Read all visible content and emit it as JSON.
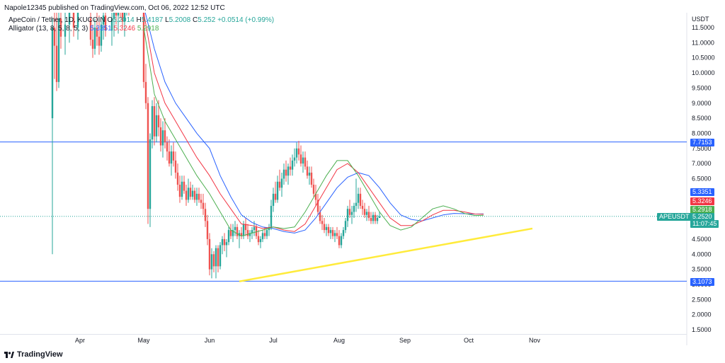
{
  "header": {
    "published": "Napole12345 published on TradingView.com, Oct 06, 2022 12:52 UTC"
  },
  "symbol": {
    "name": "ApeCoin / Tether, 1D, KUCOIN",
    "o_label": "O",
    "o": "5.2014",
    "h_label": "H",
    "h": "5.4187",
    "l_label": "L",
    "l": "5.2008",
    "c_label": "C",
    "c": "5.252",
    "change": "+0.0514 (+0.99%)"
  },
  "indicator": {
    "name": "Alligator (13, 8, 5, 8, 5, 3)",
    "jaw": "5.3351",
    "teeth": "5.3246",
    "lips": "5.2918"
  },
  "axis": {
    "currency": "USDT"
  },
  "price_tags": {
    "upper_line": "7.7153",
    "jaw": "5.3351",
    "teeth": "5.3246",
    "lips": "5.2918",
    "last": "5.2520",
    "countdown": "11:07:45",
    "lower_line": "3.1073",
    "symbol": "APEUSDT"
  },
  "colors": {
    "up": "#26a69a",
    "down": "#ef5350",
    "jaw": "#2962ff",
    "teeth": "#f23645",
    "lips": "#4caf50",
    "trendline": "#ffeb3b",
    "hline": "#2962ff"
  },
  "footer": {
    "brand": "TradingView"
  },
  "chart_data": {
    "type": "line",
    "ylabel": "USDT",
    "ylim": [
      1.5,
      11.75
    ],
    "yticks": [
      "11.5000",
      "11.0000",
      "10.5000",
      "10.0000",
      "9.5000",
      "9.0000",
      "8.5000",
      "8.0000",
      "7.5000",
      "7.0000",
      "6.5000",
      "6.0000",
      "5.5000",
      "5.0000",
      "4.5000",
      "4.0000",
      "3.5000",
      "3.0000",
      "2.5000",
      "2.0000",
      "1.5000"
    ],
    "ytick_values": [
      11.5,
      11.0,
      10.5,
      10.0,
      9.5,
      9.0,
      8.5,
      8.0,
      7.5,
      7.0,
      6.5,
      6.0,
      5.5,
      5.0,
      4.5,
      4.0,
      3.5,
      3.0,
      2.5,
      2.0,
      1.5
    ],
    "xticks": [
      "Apr",
      "May",
      "Jun",
      "Jul",
      "Aug",
      "Sep",
      "Oct",
      "Nov"
    ],
    "xtick_days": [
      31,
      61,
      92,
      122,
      153,
      184,
      214,
      245
    ],
    "horizontal_lines": [
      7.7153,
      3.1073
    ],
    "last_price": 5.252,
    "trendline": {
      "from": [
        "2022-06-15",
        3.1
      ],
      "to": [
        "2022-10-31",
        4.85
      ]
    },
    "jaw_points": [
      [
        61,
        12.2
      ],
      [
        66,
        10.8
      ],
      [
        71,
        9.7
      ],
      [
        76,
        9.0
      ],
      [
        81,
        8.5
      ],
      [
        86,
        8.0
      ],
      [
        92,
        7.5
      ],
      [
        97,
        6.6
      ],
      [
        102,
        5.9
      ],
      [
        107,
        5.3
      ],
      [
        112,
        5.05
      ],
      [
        117,
        4.9
      ],
      [
        122,
        4.85
      ],
      [
        127,
        4.75
      ],
      [
        132,
        4.7
      ],
      [
        137,
        4.8
      ],
      [
        142,
        5.2
      ],
      [
        147,
        5.7
      ],
      [
        152,
        6.2
      ],
      [
        157,
        6.55
      ],
      [
        162,
        6.7
      ],
      [
        167,
        6.6
      ],
      [
        172,
        6.2
      ],
      [
        177,
        5.7
      ],
      [
        182,
        5.3
      ],
      [
        187,
        5.15
      ],
      [
        192,
        5.1
      ],
      [
        197,
        5.2
      ],
      [
        202,
        5.3
      ],
      [
        207,
        5.35
      ],
      [
        212,
        5.34
      ],
      [
        217,
        5.33
      ],
      [
        221,
        5.335
      ]
    ],
    "teeth_points": [
      [
        61,
        12.0
      ],
      [
        66,
        10.0
      ],
      [
        71,
        9.0
      ],
      [
        76,
        8.4
      ],
      [
        81,
        7.8
      ],
      [
        86,
        7.2
      ],
      [
        92,
        6.6
      ],
      [
        97,
        6.0
      ],
      [
        102,
        5.5
      ],
      [
        107,
        5.0
      ],
      [
        112,
        4.95
      ],
      [
        117,
        4.85
      ],
      [
        122,
        4.9
      ],
      [
        127,
        4.8
      ],
      [
        132,
        4.75
      ],
      [
        137,
        5.0
      ],
      [
        142,
        5.6
      ],
      [
        147,
        6.2
      ],
      [
        152,
        6.8
      ],
      [
        157,
        7.0
      ],
      [
        162,
        6.7
      ],
      [
        167,
        6.2
      ],
      [
        172,
        5.7
      ],
      [
        177,
        5.2
      ],
      [
        182,
        4.95
      ],
      [
        187,
        4.95
      ],
      [
        192,
        5.1
      ],
      [
        197,
        5.3
      ],
      [
        202,
        5.45
      ],
      [
        207,
        5.45
      ],
      [
        212,
        5.4
      ],
      [
        217,
        5.33
      ],
      [
        221,
        5.325
      ]
    ],
    "lips_points": [
      [
        61,
        11.5
      ],
      [
        66,
        9.3
      ],
      [
        71,
        8.4
      ],
      [
        76,
        7.8
      ],
      [
        81,
        7.2
      ],
      [
        86,
        6.6
      ],
      [
        92,
        6.0
      ],
      [
        97,
        5.4
      ],
      [
        102,
        4.8
      ],
      [
        107,
        4.6
      ],
      [
        112,
        4.7
      ],
      [
        117,
        4.8
      ],
      [
        122,
        4.9
      ],
      [
        127,
        4.85
      ],
      [
        132,
        4.9
      ],
      [
        137,
        5.4
      ],
      [
        142,
        6.0
      ],
      [
        147,
        6.6
      ],
      [
        152,
        7.1
      ],
      [
        157,
        7.1
      ],
      [
        162,
        6.6
      ],
      [
        167,
        6.0
      ],
      [
        172,
        5.4
      ],
      [
        177,
        4.95
      ],
      [
        182,
        4.8
      ],
      [
        187,
        4.9
      ],
      [
        192,
        5.2
      ],
      [
        197,
        5.5
      ],
      [
        202,
        5.6
      ],
      [
        207,
        5.5
      ],
      [
        212,
        5.35
      ],
      [
        217,
        5.28
      ],
      [
        221,
        5.29
      ]
    ],
    "candles": [
      [
        18,
        8.5,
        11.8,
        4.0,
        11.5
      ],
      [
        19,
        11.5,
        12.5,
        9.8,
        10.9
      ],
      [
        20,
        10.9,
        12.6,
        9.4,
        9.7
      ],
      [
        21,
        9.7,
        12.1,
        9.5,
        11.8
      ],
      [
        22,
        11.8,
        12.6,
        10.8,
        11.2
      ],
      [
        24,
        11.2,
        12.2,
        10.6,
        11.6
      ],
      [
        26,
        11.6,
        12.5,
        11.0,
        12.0
      ],
      [
        28,
        12.0,
        12.6,
        11.2,
        11.5
      ],
      [
        30,
        11.5,
        12.4,
        11.1,
        12.2
      ],
      [
        36,
        11.8,
        12.5,
        10.9,
        11.1
      ],
      [
        37,
        11.1,
        11.6,
        10.5,
        10.8
      ],
      [
        38,
        10.8,
        11.8,
        10.6,
        11.5
      ],
      [
        39,
        11.5,
        12.3,
        10.9,
        11.2
      ],
      [
        40,
        11.2,
        11.9,
        10.6,
        10.9
      ],
      [
        41,
        10.9,
        11.7,
        10.7,
        11.6
      ],
      [
        42,
        11.6,
        12.4,
        11.1,
        11.9
      ],
      [
        43,
        11.9,
        12.6,
        11.2,
        11.4
      ],
      [
        46,
        11.4,
        12.4,
        10.9,
        11.8
      ],
      [
        47,
        11.8,
        12.5,
        11.2,
        12.1
      ],
      [
        48,
        12.1,
        12.6,
        11.6,
        11.9
      ],
      [
        49,
        11.9,
        12.6,
        11.3,
        12.3
      ],
      [
        50,
        12.3,
        12.6,
        11.8,
        12.0
      ],
      [
        51,
        12.0,
        12.7,
        11.5,
        11.7
      ],
      [
        52,
        11.7,
        12.3,
        11.2,
        12.2
      ],
      [
        53,
        12.2,
        12.7,
        11.9,
        12.4
      ],
      [
        54,
        12.4,
        12.8,
        11.9,
        12.1
      ],
      [
        61,
        12.0,
        12.2,
        9.5,
        9.7
      ],
      [
        62,
        9.7,
        10.3,
        8.8,
        9.0
      ],
      [
        63,
        9.0,
        9.2,
        5.0,
        5.5
      ],
      [
        64,
        5.5,
        8.0,
        4.9,
        7.8
      ],
      [
        65,
        7.8,
        9.1,
        7.5,
        8.9
      ],
      [
        66,
        8.9,
        9.2,
        7.6,
        7.9
      ],
      [
        67,
        7.9,
        9.0,
        7.7,
        8.6
      ],
      [
        68,
        8.6,
        9.1,
        7.9,
        8.2
      ],
      [
        69,
        8.2,
        8.5,
        7.4,
        7.6
      ],
      [
        70,
        7.6,
        8.4,
        7.2,
        8.1
      ],
      [
        71,
        8.1,
        8.5,
        7.5,
        7.7
      ],
      [
        72,
        7.7,
        7.9,
        7.1,
        7.4
      ],
      [
        73,
        7.4,
        7.8,
        6.9,
        7.0
      ],
      [
        74,
        7.0,
        7.6,
        6.6,
        7.4
      ],
      [
        75,
        7.4,
        7.7,
        6.9,
        7.1
      ],
      [
        76,
        7.1,
        7.4,
        6.5,
        6.7
      ],
      [
        77,
        6.7,
        7.0,
        6.1,
        6.3
      ],
      [
        78,
        6.3,
        6.6,
        5.7,
        5.9
      ],
      [
        79,
        5.9,
        6.6,
        5.8,
        6.4
      ],
      [
        80,
        6.4,
        6.6,
        6.0,
        6.1
      ],
      [
        81,
        6.1,
        6.3,
        5.6,
        5.8
      ],
      [
        82,
        5.8,
        6.5,
        5.7,
        6.2
      ],
      [
        83,
        6.2,
        6.4,
        5.8,
        5.9
      ],
      [
        84,
        5.9,
        6.3,
        5.8,
        6.1
      ],
      [
        85,
        6.1,
        6.2,
        5.7,
        5.8
      ],
      [
        86,
        5.8,
        6.2,
        5.6,
        6.0
      ],
      [
        87,
        6.0,
        6.2,
        5.7,
        5.8
      ],
      [
        88,
        5.8,
        6.0,
        5.5,
        5.7
      ],
      [
        89,
        5.7,
        6.0,
        5.3,
        5.5
      ],
      [
        90,
        5.5,
        5.7,
        4.9,
        5.1
      ],
      [
        91,
        5.1,
        5.3,
        4.3,
        4.5
      ],
      [
        92,
        4.5,
        4.7,
        3.3,
        3.5
      ],
      [
        93,
        3.5,
        4.2,
        3.2,
        4.0
      ],
      [
        94,
        4.0,
        4.1,
        3.4,
        3.6
      ],
      [
        95,
        3.6,
        4.3,
        3.2,
        4.2
      ],
      [
        96,
        4.2,
        4.3,
        3.4,
        3.6
      ],
      [
        97,
        3.6,
        4.4,
        3.5,
        4.3
      ],
      [
        98,
        4.3,
        4.6,
        4.0,
        4.5
      ],
      [
        99,
        4.5,
        4.7,
        4.1,
        4.3
      ],
      [
        100,
        4.3,
        4.5,
        3.9,
        4.4
      ],
      [
        101,
        4.4,
        4.9,
        4.3,
        4.8
      ],
      [
        102,
        4.8,
        5.0,
        4.5,
        4.6
      ],
      [
        103,
        4.6,
        5.0,
        4.4,
        4.8
      ],
      [
        104,
        4.8,
        5.1,
        4.6,
        4.9
      ],
      [
        105,
        4.9,
        5.0,
        4.5,
        4.6
      ],
      [
        106,
        4.6,
        4.8,
        4.2,
        4.7
      ],
      [
        107,
        4.7,
        4.9,
        4.5,
        4.6
      ],
      [
        108,
        4.6,
        5.1,
        4.5,
        5.0
      ],
      [
        109,
        5.0,
        5.2,
        4.6,
        4.8
      ],
      [
        110,
        4.8,
        5.0,
        4.5,
        4.6
      ],
      [
        111,
        4.6,
        4.8,
        4.4,
        4.7
      ],
      [
        112,
        4.7,
        4.9,
        4.5,
        4.8
      ],
      [
        113,
        4.8,
        5.1,
        4.6,
        4.9
      ],
      [
        114,
        4.9,
        5.0,
        4.5,
        4.6
      ],
      [
        115,
        4.6,
        4.8,
        4.3,
        4.4
      ],
      [
        116,
        4.4,
        4.6,
        4.2,
        4.5
      ],
      [
        117,
        4.5,
        4.8,
        4.4,
        4.7
      ],
      [
        118,
        4.7,
        4.9,
        4.5,
        4.6
      ],
      [
        119,
        4.6,
        4.9,
        4.5,
        4.8
      ],
      [
        120,
        4.8,
        5.0,
        4.6,
        4.9
      ],
      [
        121,
        4.9,
        5.8,
        4.8,
        5.6
      ],
      [
        122,
        5.6,
        6.2,
        5.4,
        6.0
      ],
      [
        123,
        6.0,
        6.4,
        5.7,
        5.8
      ],
      [
        124,
        5.8,
        6.6,
        5.7,
        6.4
      ],
      [
        125,
        6.4,
        6.8,
        6.1,
        6.2
      ],
      [
        126,
        6.2,
        6.7,
        5.9,
        6.5
      ],
      [
        127,
        6.5,
        7.0,
        6.3,
        6.8
      ],
      [
        128,
        6.8,
        7.1,
        6.4,
        6.6
      ],
      [
        129,
        6.6,
        7.0,
        6.3,
        6.9
      ],
      [
        130,
        6.9,
        7.2,
        6.6,
        6.8
      ],
      [
        131,
        6.8,
        7.3,
        6.6,
        7.1
      ],
      [
        132,
        7.1,
        7.5,
        6.9,
        7.2
      ],
      [
        133,
        7.2,
        7.7,
        7.0,
        7.5
      ],
      [
        134,
        7.5,
        7.75,
        7.1,
        7.3
      ],
      [
        135,
        7.3,
        7.6,
        6.9,
        7.0
      ],
      [
        136,
        7.0,
        7.4,
        6.7,
        7.2
      ],
      [
        137,
        7.2,
        7.4,
        6.8,
        6.9
      ],
      [
        138,
        6.9,
        7.1,
        6.5,
        6.6
      ],
      [
        139,
        6.6,
        6.9,
        6.3,
        6.7
      ],
      [
        140,
        6.7,
        6.9,
        6.2,
        6.3
      ],
      [
        141,
        6.3,
        6.5,
        5.9,
        6.0
      ],
      [
        142,
        6.0,
        6.3,
        5.6,
        5.8
      ],
      [
        143,
        5.8,
        6.0,
        5.3,
        5.4
      ],
      [
        144,
        5.4,
        5.6,
        5.0,
        5.1
      ],
      [
        145,
        5.1,
        5.3,
        4.8,
        5.0
      ],
      [
        146,
        5.0,
        5.2,
        4.7,
        4.8
      ],
      [
        147,
        4.8,
        5.0,
        4.6,
        4.9
      ],
      [
        148,
        4.9,
        5.0,
        4.6,
        4.7
      ],
      [
        149,
        4.7,
        4.9,
        4.5,
        4.8
      ],
      [
        150,
        4.8,
        4.9,
        4.5,
        4.6
      ],
      [
        151,
        4.6,
        4.8,
        4.4,
        4.7
      ],
      [
        152,
        4.7,
        4.9,
        4.5,
        4.6
      ],
      [
        153,
        4.6,
        4.8,
        4.2,
        4.3
      ],
      [
        154,
        4.3,
        4.7,
        4.2,
        4.6
      ],
      [
        155,
        4.6,
        4.9,
        4.5,
        4.8
      ],
      [
        156,
        4.8,
        5.2,
        4.7,
        5.1
      ],
      [
        157,
        5.1,
        5.6,
        4.9,
        5.5
      ],
      [
        158,
        5.5,
        5.8,
        5.2,
        5.3
      ],
      [
        159,
        5.3,
        5.6,
        5.0,
        5.4
      ],
      [
        160,
        5.4,
        5.7,
        5.2,
        5.6
      ],
      [
        161,
        5.6,
        6.5,
        5.4,
        5.7
      ],
      [
        162,
        5.7,
        6.2,
        5.5,
        6.0
      ],
      [
        163,
        6.0,
        6.2,
        5.5,
        5.6
      ],
      [
        164,
        5.6,
        5.8,
        5.3,
        5.5
      ],
      [
        165,
        5.5,
        5.7,
        5.2,
        5.3
      ],
      [
        166,
        5.3,
        5.5,
        5.1,
        5.4
      ],
      [
        167,
        5.4,
        5.6,
        5.1,
        5.2
      ],
      [
        168,
        5.2,
        5.4,
        5.0,
        5.1
      ],
      [
        169,
        5.1,
        5.4,
        5.0,
        5.3
      ],
      [
        170,
        5.3,
        5.4,
        5.0,
        5.1
      ],
      [
        171,
        5.1,
        5.3,
        5.0,
        5.2014
      ],
      [
        172,
        5.2014,
        5.4187,
        5.2008,
        5.252
      ]
    ]
  }
}
